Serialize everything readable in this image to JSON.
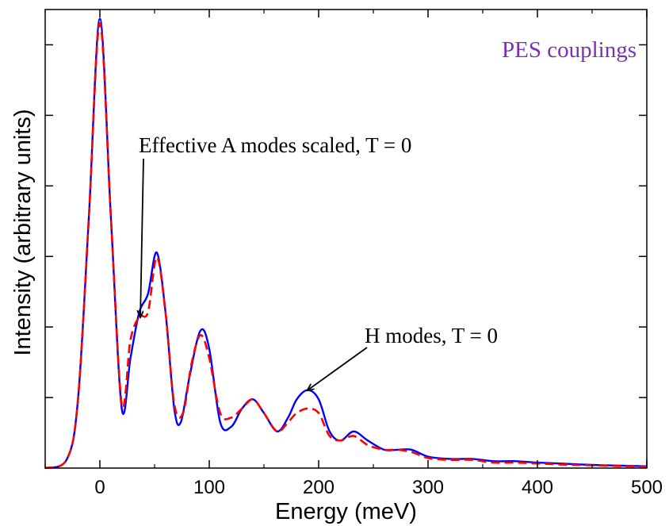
{
  "chart_data": {
    "type": "line",
    "title": "",
    "xlabel": "Energy (meV)",
    "ylabel": "Intensity (arbitrary units)",
    "xlim": [
      -50,
      500
    ],
    "ylim": [
      0,
      1
    ],
    "x_ticks": [
      0,
      100,
      200,
      300,
      400,
      500
    ],
    "y_ticks_labeled": false,
    "grid": false,
    "legend": "none",
    "text_label": "PES couplings",
    "text_label_color": "#7a32b4",
    "annotations": [
      {
        "text": "Effective A modes  scaled, T = 0",
        "points_to": [
          37,
          0.33
        ]
      },
      {
        "text": "H modes, T =  0",
        "points_to": [
          190,
          0.17
        ]
      }
    ],
    "series": [
      {
        "color": "#0000ff",
        "dash": "solid",
        "x": [
          -50,
          -30,
          -20,
          -10,
          0,
          10,
          20,
          28,
          36,
          44,
          52,
          60,
          68,
          74,
          82,
          92,
          100,
          110,
          120,
          130,
          140,
          150,
          162,
          172,
          180,
          190,
          200,
          210,
          220,
          232,
          245,
          260,
          272,
          285,
          300,
          320,
          340,
          360,
          380,
          400,
          420,
          450,
          480,
          500
        ],
        "y": [
          0.0,
          0.02,
          0.15,
          0.55,
          0.98,
          0.55,
          0.13,
          0.24,
          0.34,
          0.38,
          0.47,
          0.34,
          0.13,
          0.1,
          0.2,
          0.3,
          0.26,
          0.1,
          0.09,
          0.13,
          0.15,
          0.12,
          0.08,
          0.11,
          0.15,
          0.17,
          0.15,
          0.08,
          0.06,
          0.08,
          0.06,
          0.04,
          0.04,
          0.04,
          0.025,
          0.02,
          0.02,
          0.015,
          0.015,
          0.012,
          0.01,
          0.007,
          0.005,
          0.004
        ]
      },
      {
        "color": "#ff0000",
        "dash": "dashed",
        "x": [
          -50,
          -30,
          -20,
          -10,
          0,
          10,
          20,
          28,
          36,
          44,
          52,
          60,
          68,
          76,
          84,
          92,
          100,
          110,
          120,
          130,
          140,
          150,
          162,
          172,
          180,
          190,
          200,
          210,
          220,
          232,
          245,
          260,
          272,
          285,
          300,
          320,
          340,
          360,
          380,
          400,
          420,
          450,
          480,
          500
        ],
        "y": [
          0.0,
          0.02,
          0.15,
          0.55,
          0.97,
          0.55,
          0.14,
          0.28,
          0.33,
          0.34,
          0.46,
          0.34,
          0.14,
          0.12,
          0.23,
          0.29,
          0.24,
          0.12,
          0.11,
          0.13,
          0.15,
          0.12,
          0.08,
          0.1,
          0.12,
          0.13,
          0.12,
          0.07,
          0.06,
          0.07,
          0.05,
          0.04,
          0.04,
          0.035,
          0.022,
          0.018,
          0.018,
          0.012,
          0.012,
          0.01,
          0.008,
          0.006,
          0.004,
          0.003
        ]
      }
    ]
  }
}
